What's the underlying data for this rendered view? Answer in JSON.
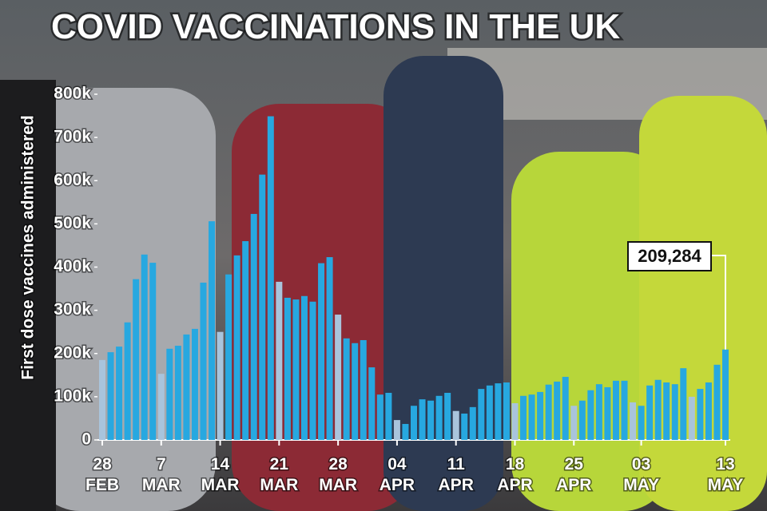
{
  "chart_data": {
    "type": "bar",
    "title": "COVID VACCINATIONS IN THE UK",
    "y_label": "First dose vaccines administered",
    "categories": [
      "28 FEB",
      null,
      null,
      null,
      null,
      null,
      null,
      "7 MAR",
      null,
      null,
      null,
      null,
      null,
      null,
      "14 MAR",
      null,
      null,
      null,
      null,
      null,
      null,
      "21 MAR",
      null,
      null,
      null,
      null,
      null,
      null,
      "28 MAR",
      null,
      null,
      null,
      null,
      null,
      null,
      "04 APR",
      null,
      null,
      null,
      null,
      null,
      null,
      "11 APR",
      null,
      null,
      null,
      null,
      null,
      null,
      "18 APR",
      null,
      null,
      null,
      null,
      null,
      null,
      "25 APR",
      null,
      null,
      null,
      null,
      null,
      null,
      null,
      "03 MAY",
      null,
      null,
      null,
      null,
      null,
      null,
      null,
      null,
      null,
      "13 MAY"
    ],
    "values": [
      185,
      203,
      216,
      272,
      372,
      429,
      410,
      153,
      211,
      218,
      244,
      257,
      364,
      506,
      250,
      383,
      427,
      460,
      523,
      614,
      749,
      366,
      329,
      325,
      333,
      320,
      409,
      423,
      290,
      235,
      224,
      231,
      168,
      105,
      109,
      46,
      37,
      79,
      94,
      91,
      102,
      109,
      67,
      61,
      76,
      118,
      126,
      131,
      133,
      85,
      102,
      105,
      111,
      128,
      135,
      146,
      79,
      91,
      115,
      129,
      122,
      137,
      137,
      87,
      79,
      126,
      139,
      133,
      129,
      166,
      100,
      118,
      133,
      174,
      209.284
    ],
    "value_labels": [
      null,
      null,
      null,
      null,
      null,
      null,
      null,
      null,
      null,
      null,
      null,
      null,
      null,
      null,
      null,
      null,
      null,
      null,
      null,
      null,
      null,
      null,
      null,
      null,
      null,
      null,
      null,
      null,
      null,
      null,
      null,
      null,
      null,
      null,
      null,
      null,
      null,
      null,
      null,
      null,
      null,
      null,
      null,
      null,
      null,
      null,
      null,
      null,
      null,
      null,
      null,
      null,
      null,
      null,
      null,
      null,
      null,
      null,
      null,
      null,
      null,
      null,
      null,
      null,
      null,
      null,
      null,
      null,
      null,
      null,
      null,
      null,
      null,
      null,
      "209,284"
    ],
    "color": "#27a8e0",
    "sunday_color": "#a9c4dc",
    "sundays": [
      0,
      7,
      14,
      21,
      28,
      35,
      42,
      49,
      56,
      63,
      70
    ],
    "ylim": [
      0,
      800
    ],
    "yticks": [
      0,
      {
        "value": 100,
        "label": "100k"
      },
      {
        "value": 200,
        "label": "200k"
      },
      {
        "value": 300,
        "label": "300k"
      },
      {
        "value": 400,
        "label": "400k"
      },
      {
        "value": 500,
        "label": "500k"
      },
      {
        "value": 600,
        "label": "600k"
      },
      {
        "value": 700,
        "label": "700k"
      },
      {
        "value": 800,
        "label": "800k"
      }
    ]
  }
}
